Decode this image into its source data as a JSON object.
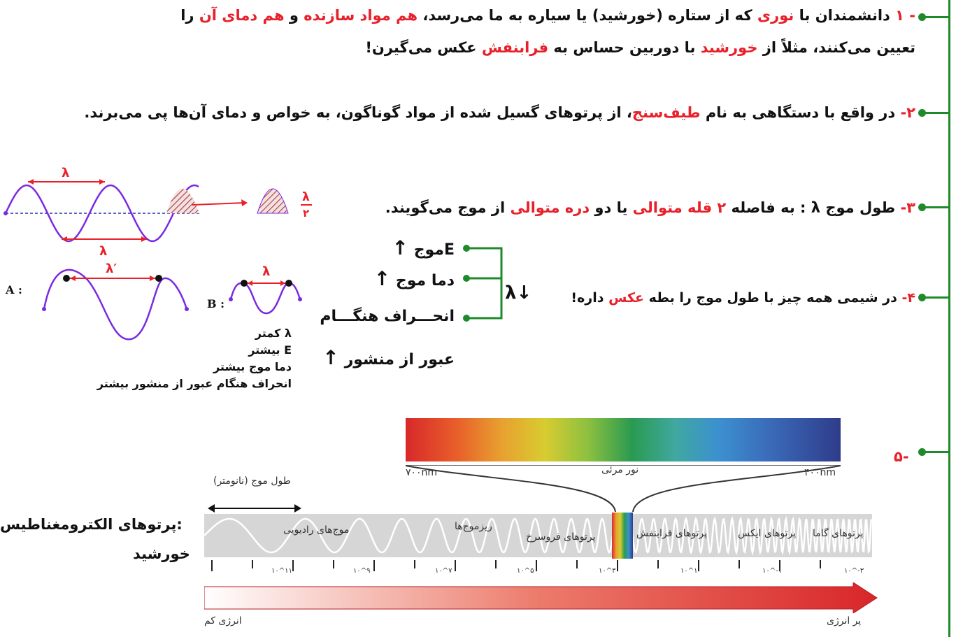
{
  "items": {
    "p1_line1": [
      "- ",
      "۱",
      " دانشمندان با ",
      "نوری",
      " که از ستاره (خورشید) یا سیاره به ما می‌رسد، ",
      "هم مواد سازنده",
      " و ",
      "هم دمای آن",
      " را"
    ],
    "p1_line2": [
      "تعیین می‌کنند، مثلاً از ",
      "خورشید",
      " با دوربین حساس به ",
      "فرابنفش",
      " عکس می‌گیرن!"
    ],
    "p2": [
      "۲- ",
      "در واقع با دستگاهی به نام ",
      "طیف‌سنج",
      "، از پرتوهای گسیل شده از مواد گوناگون، به خواص و دمای آن‌ها پی می‌برند."
    ],
    "p3": [
      "۳- ",
      "طول موج λ : به فاصله ",
      "۲ قله متوالی",
      " یا دو ",
      "دره متوالی",
      " از موج می‌گویند."
    ],
    "p4": [
      "۴- ",
      "در شیمی همه چیز با طول موج را بطه ",
      "عکس",
      " داره!"
    ],
    "p5": "۵-"
  },
  "wave": {
    "lambda": "λ",
    "lambda_prime": "λ′",
    "half_lambda_top": "λ",
    "half_lambda_bottom": "۲",
    "label_a": "A :",
    "label_b": "B :"
  },
  "props": {
    "e_wave": "Eموج",
    "temp_wave": "دما موج",
    "deviation": "انحـــراف هنگـــام",
    "deviation2": "عبور از منشور",
    "lambda_down": "λ↓",
    "arrow_up": "↑"
  },
  "compare": {
    "l1": "λ کمتر",
    "l2": "E بیشتر",
    "l3": "دما موج بیشتر",
    "l4": "انحراف هنگام عبور از منشور بیشتر"
  },
  "spectrum": {
    "visible_left": "۷۰۰nm",
    "visible_center": "نور مرئی",
    "visible_right": "۴۰۰nm",
    "wavelength_title": "طول موج (نانومتر)",
    "side_label1": ":پرتوهای الکترومغناطیس",
    "side_label2": "خورشید",
    "bands": [
      "پرتوهای گاما",
      "پرتوهای ایکس",
      "پرتوهای فرابنفش",
      "پرتوهای فروسرخ",
      "ریزموج‌ها",
      "موج‌های رادیویی"
    ],
    "ticks": [
      "۱۰^۱۱",
      "۱۰^۹",
      "۱۰^۷",
      "۱۰^۵",
      "۱۰^۳",
      "۱۰^۱",
      "۱۰^-۱",
      "۱۰^-۳"
    ],
    "low_energy": "انرژی کم",
    "high_energy": "پر انرژی",
    "colors": {
      "green": "#1f8a2a",
      "red": "#e8202a",
      "purple": "#7a2be0"
    }
  }
}
